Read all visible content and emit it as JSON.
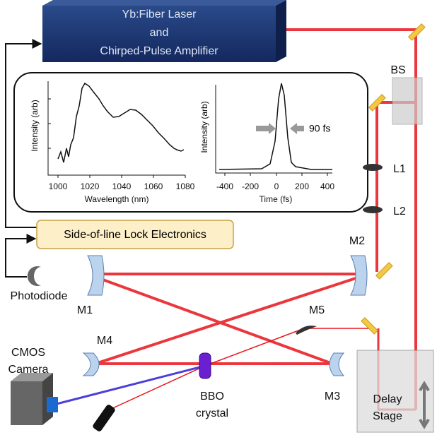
{
  "laser": {
    "lines": [
      "Yb:Fiber Laser",
      "and",
      "Chirped-Pulse Amplifier"
    ]
  },
  "spectrum_plot": {
    "y_label": "Intensity (arb)",
    "x_label": "Wavelength (nm)",
    "xticks": [
      "1000",
      "1020",
      "1040",
      "1060",
      "1080"
    ]
  },
  "pulse_plot": {
    "y_label": "Intensity (arb)",
    "x_label": "Time (fs)",
    "xticks": [
      "-400",
      "-200",
      "0",
      "200",
      "400"
    ],
    "annotation": "90 fs"
  },
  "electronics": "Side-of-line Lock Electronics",
  "labels": {
    "bs": "BS",
    "l1": "L1",
    "l2": "L2",
    "m1": "M1",
    "m2": "M2",
    "m3": "M3",
    "m4": "M4",
    "m5": "M5",
    "photodiode": "Photodiode",
    "camera": [
      "CMOS",
      "Camera"
    ],
    "bbo": [
      "BBO",
      "crystal"
    ],
    "delay": [
      "Delay",
      "Stage"
    ]
  }
}
